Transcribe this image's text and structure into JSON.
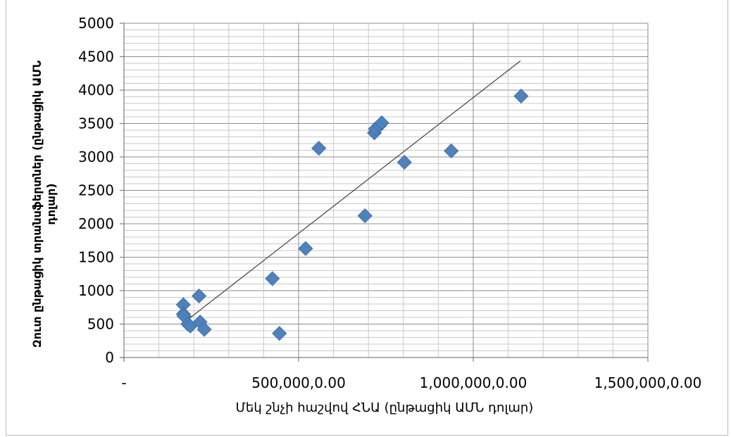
{
  "chart_data": {
    "type": "scatter",
    "title": "",
    "xlabel": "Մեկ շնչի հաշվով ՀՆԱ (ընթացիկ ԱՄՆ դոլար)",
    "ylabel_line1": "Զուտ ընթացիկ տրանսֆերտներ (ընթացիկ ԱՄՆ",
    "ylabel_line2": "դոլար)",
    "xlim": [
      0,
      1500000
    ],
    "ylim": [
      0,
      5000
    ],
    "x_ticks": [
      {
        "value": 0,
        "label": "-"
      },
      {
        "value": 500000,
        "label": "500,000,0.00"
      },
      {
        "value": 1000000,
        "label": "1,000,000,0.00"
      },
      {
        "value": 1500000,
        "label": "1,500,000,0.00"
      }
    ],
    "y_ticks": [
      {
        "value": 0,
        "label": "0"
      },
      {
        "value": 500,
        "label": "500"
      },
      {
        "value": 1000,
        "label": "1000"
      },
      {
        "value": 1500,
        "label": "1500"
      },
      {
        "value": 2000,
        "label": "2000"
      },
      {
        "value": 2500,
        "label": "2500"
      },
      {
        "value": 3000,
        "label": "3000"
      },
      {
        "value": 3500,
        "label": "3500"
      },
      {
        "value": 4000,
        "label": "4000"
      },
      {
        "value": 4500,
        "label": "4500"
      },
      {
        "value": 5000,
        "label": "5000"
      }
    ],
    "grid": true,
    "marker_color": "#4f81bd",
    "trendline_color": "#404040",
    "points": [
      {
        "x": 170000,
        "y": 790
      },
      {
        "x": 170000,
        "y": 650
      },
      {
        "x": 172000,
        "y": 620
      },
      {
        "x": 183000,
        "y": 500
      },
      {
        "x": 190000,
        "y": 470
      },
      {
        "x": 215000,
        "y": 920
      },
      {
        "x": 218000,
        "y": 530
      },
      {
        "x": 230000,
        "y": 420
      },
      {
        "x": 425000,
        "y": 1180
      },
      {
        "x": 445000,
        "y": 360
      },
      {
        "x": 520000,
        "y": 1630
      },
      {
        "x": 558000,
        "y": 3130
      },
      {
        "x": 690000,
        "y": 2120
      },
      {
        "x": 717000,
        "y": 3360
      },
      {
        "x": 720000,
        "y": 3420
      },
      {
        "x": 732000,
        "y": 3470
      },
      {
        "x": 738000,
        "y": 3510
      },
      {
        "x": 803000,
        "y": 2920
      },
      {
        "x": 937000,
        "y": 3090
      },
      {
        "x": 1137000,
        "y": 3910
      }
    ],
    "trendline": {
      "x_start": 170000,
      "x_end": 1135000
    }
  }
}
